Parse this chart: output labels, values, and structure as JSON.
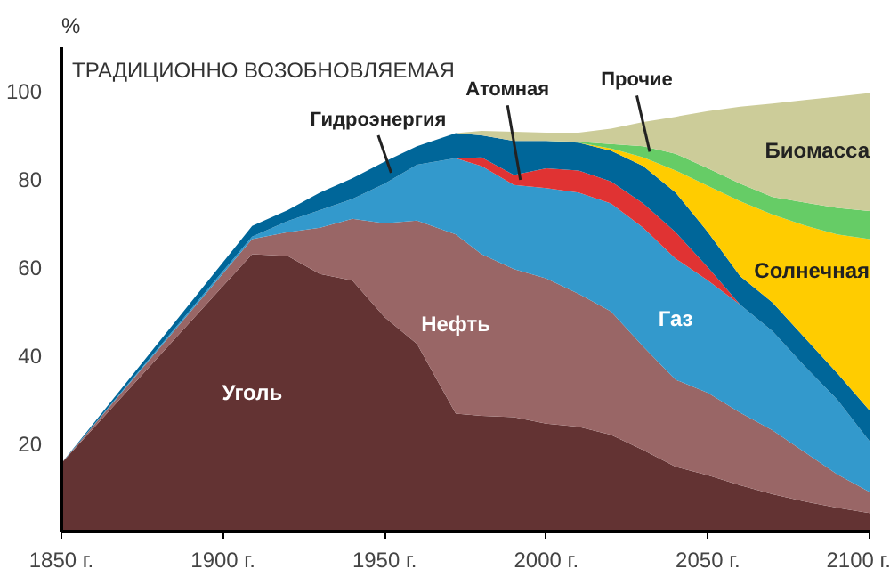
{
  "chart_data": {
    "type": "area",
    "stacked": true,
    "ylabel": "%",
    "annotations": [
      "ТРАДИЦИОННО ВОЗОБНОВЛЯЕМАЯ"
    ],
    "x": [
      1850,
      1909,
      1920,
      1930,
      1940,
      1950,
      1960,
      1972,
      1980,
      1990,
      2000,
      2010,
      2020,
      2030,
      2040,
      2050,
      2060,
      2070,
      2080,
      2090,
      2100
    ],
    "xlim": [
      1850,
      2100
    ],
    "ylim": [
      0,
      110
    ],
    "xticks": [
      {
        "value": 1850,
        "label": "1850 г."
      },
      {
        "value": 1900,
        "label": "1900 г."
      },
      {
        "value": 1950,
        "label": "1950 г."
      },
      {
        "value": 2000,
        "label": "2000 г."
      },
      {
        "value": 2050,
        "label": "2050 г."
      },
      {
        "value": 2100,
        "label": "2100 г."
      }
    ],
    "yticks": [
      20,
      40,
      60,
      80,
      100
    ],
    "grid": false,
    "series": [
      {
        "name": "Уголь",
        "color": "#633333",
        "values": [
          15.5,
          63,
          62.6,
          58.5,
          57,
          48.7,
          42.6,
          26.8,
          26.3,
          26,
          24.5,
          23.8,
          22,
          18.5,
          14.7,
          12.8,
          10.5,
          8.5,
          6.8,
          5.4,
          4.2
        ]
      },
      {
        "name": "Нефть",
        "color": "#996666",
        "values": [
          0,
          3.4,
          5.4,
          10.5,
          14,
          21.3,
          28,
          40.7,
          36.7,
          33.6,
          33,
          30.2,
          28,
          23.5,
          19.8,
          18.7,
          16.5,
          14.5,
          11.2,
          7.6,
          4.8
        ]
      },
      {
        "name": "Газ",
        "color": "#3399cc",
        "values": [
          0,
          0.6,
          2.5,
          4,
          4.5,
          9,
          12.7,
          17.3,
          20,
          19.1,
          20.5,
          23,
          24.5,
          27,
          27.5,
          25.5,
          24.5,
          22.5,
          19.5,
          17,
          11.5
        ]
      },
      {
        "name": "Атомная",
        "color": "#e03333",
        "values": [
          null,
          null,
          null,
          null,
          null,
          null,
          null,
          0,
          2,
          2.3,
          4.5,
          5,
          5,
          5.5,
          6,
          3,
          0,
          null,
          null,
          null,
          null
        ]
      },
      {
        "name": "Гидроэнергия",
        "color": "#006699",
        "values": [
          0,
          2.4,
          2.5,
          4,
          4.7,
          5,
          4.2,
          5.7,
          5,
          7.7,
          6.2,
          6.3,
          7,
          8.5,
          9,
          8,
          6.5,
          6.5,
          6.5,
          6,
          7
        ]
      },
      {
        "name": "Солнечная",
        "color": "#ffcc00",
        "values": [
          null,
          null,
          null,
          null,
          null,
          null,
          null,
          null,
          null,
          null,
          null,
          0,
          0.5,
          2,
          5,
          10.5,
          17,
          20,
          25.5,
          31.5,
          38.9
        ]
      },
      {
        "name": "Прочие",
        "color": "#66cc66",
        "values": [
          null,
          null,
          null,
          null,
          null,
          null,
          null,
          null,
          null,
          null,
          0,
          0.2,
          1,
          2.5,
          3.8,
          4,
          4,
          4,
          5.2,
          6,
          6.4
        ]
      },
      {
        "name": "Биомасса",
        "color": "#cccc99",
        "values": [
          null,
          null,
          null,
          null,
          null,
          null,
          null,
          0,
          1,
          2.1,
          1.9,
          2.1,
          3.5,
          5.5,
          8.4,
          13,
          17.5,
          21.2,
          23.3,
          25.3,
          26.8
        ]
      }
    ]
  }
}
